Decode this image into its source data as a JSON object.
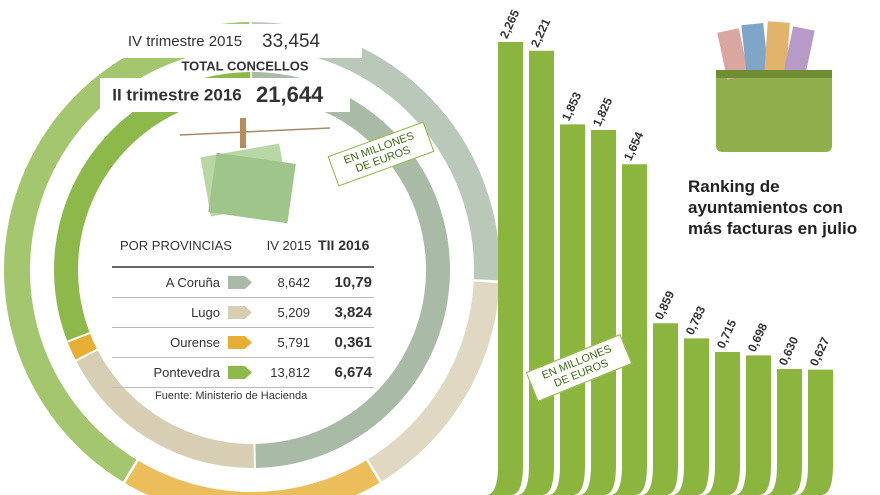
{
  "chart_data": [
    {
      "type": "donut",
      "title": "TOTAL CONCELLOS",
      "unit_note": "EN MILLONES DE EUROS",
      "table_header": "POR PROVINCIAS",
      "categories": [
        "A Coruña",
        "Lugo",
        "Ourense",
        "Pontevedra"
      ],
      "colors": [
        "#a9baa7",
        "#d8ceb3",
        "#e6ae32",
        "#8db84a"
      ],
      "series": [
        {
          "name": "IV trimestre 2015",
          "column": "IV 2015",
          "total": 33.454,
          "total_label": "33,454",
          "values": [
            8.642,
            5.209,
            5.791,
            13.812
          ],
          "value_labels": [
            "8,642",
            "5,209",
            "5,791",
            "13,812"
          ]
        },
        {
          "name": "II trimestre 2016",
          "column": "TII 2016",
          "total": 21.644,
          "total_label": "21,644",
          "values": [
            10.79,
            3.824,
            0.361,
            6.674
          ],
          "value_labels": [
            "10,79",
            "3,824",
            "0,361",
            "6,674"
          ]
        }
      ],
      "source": "Fuente: Ministerio de Hacienda"
    },
    {
      "type": "bar",
      "title": "Ranking de ayuntamientos con más facturas en julio",
      "unit_note": "EN MILLONES DE EUROS",
      "color": "#8cb53f",
      "categories": [
        null,
        null,
        null,
        null,
        null,
        null,
        null,
        null,
        null,
        null,
        null
      ],
      "values": [
        2.265,
        2.221,
        1.853,
        1.825,
        1.654,
        0.859,
        0.783,
        0.715,
        0.698,
        0.63,
        0.627
      ],
      "value_labels": [
        "2,265",
        "2,221",
        "1,853",
        "1,825",
        "1,654",
        "0,859",
        "0,783",
        "0,715",
        "0,698",
        "0,630",
        "0,627"
      ]
    }
  ]
}
